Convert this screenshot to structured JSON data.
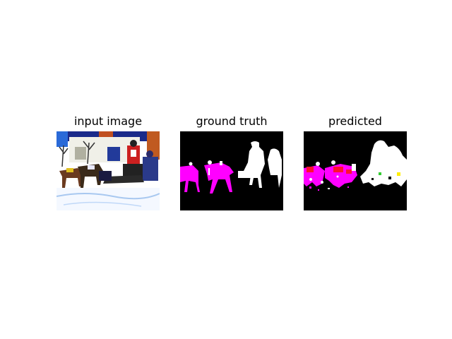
{
  "figure": {
    "panels": [
      {
        "title": "input image"
      },
      {
        "title": "ground truth"
      },
      {
        "title": "predicted"
      }
    ]
  },
  "colors": {
    "background": "#000000",
    "person": "#ffffff",
    "horse": "#ff00ff",
    "predicted_error_red": "#ff0033",
    "predicted_error_green": "#33cc33",
    "predicted_error_yellow": "#ffee00"
  }
}
